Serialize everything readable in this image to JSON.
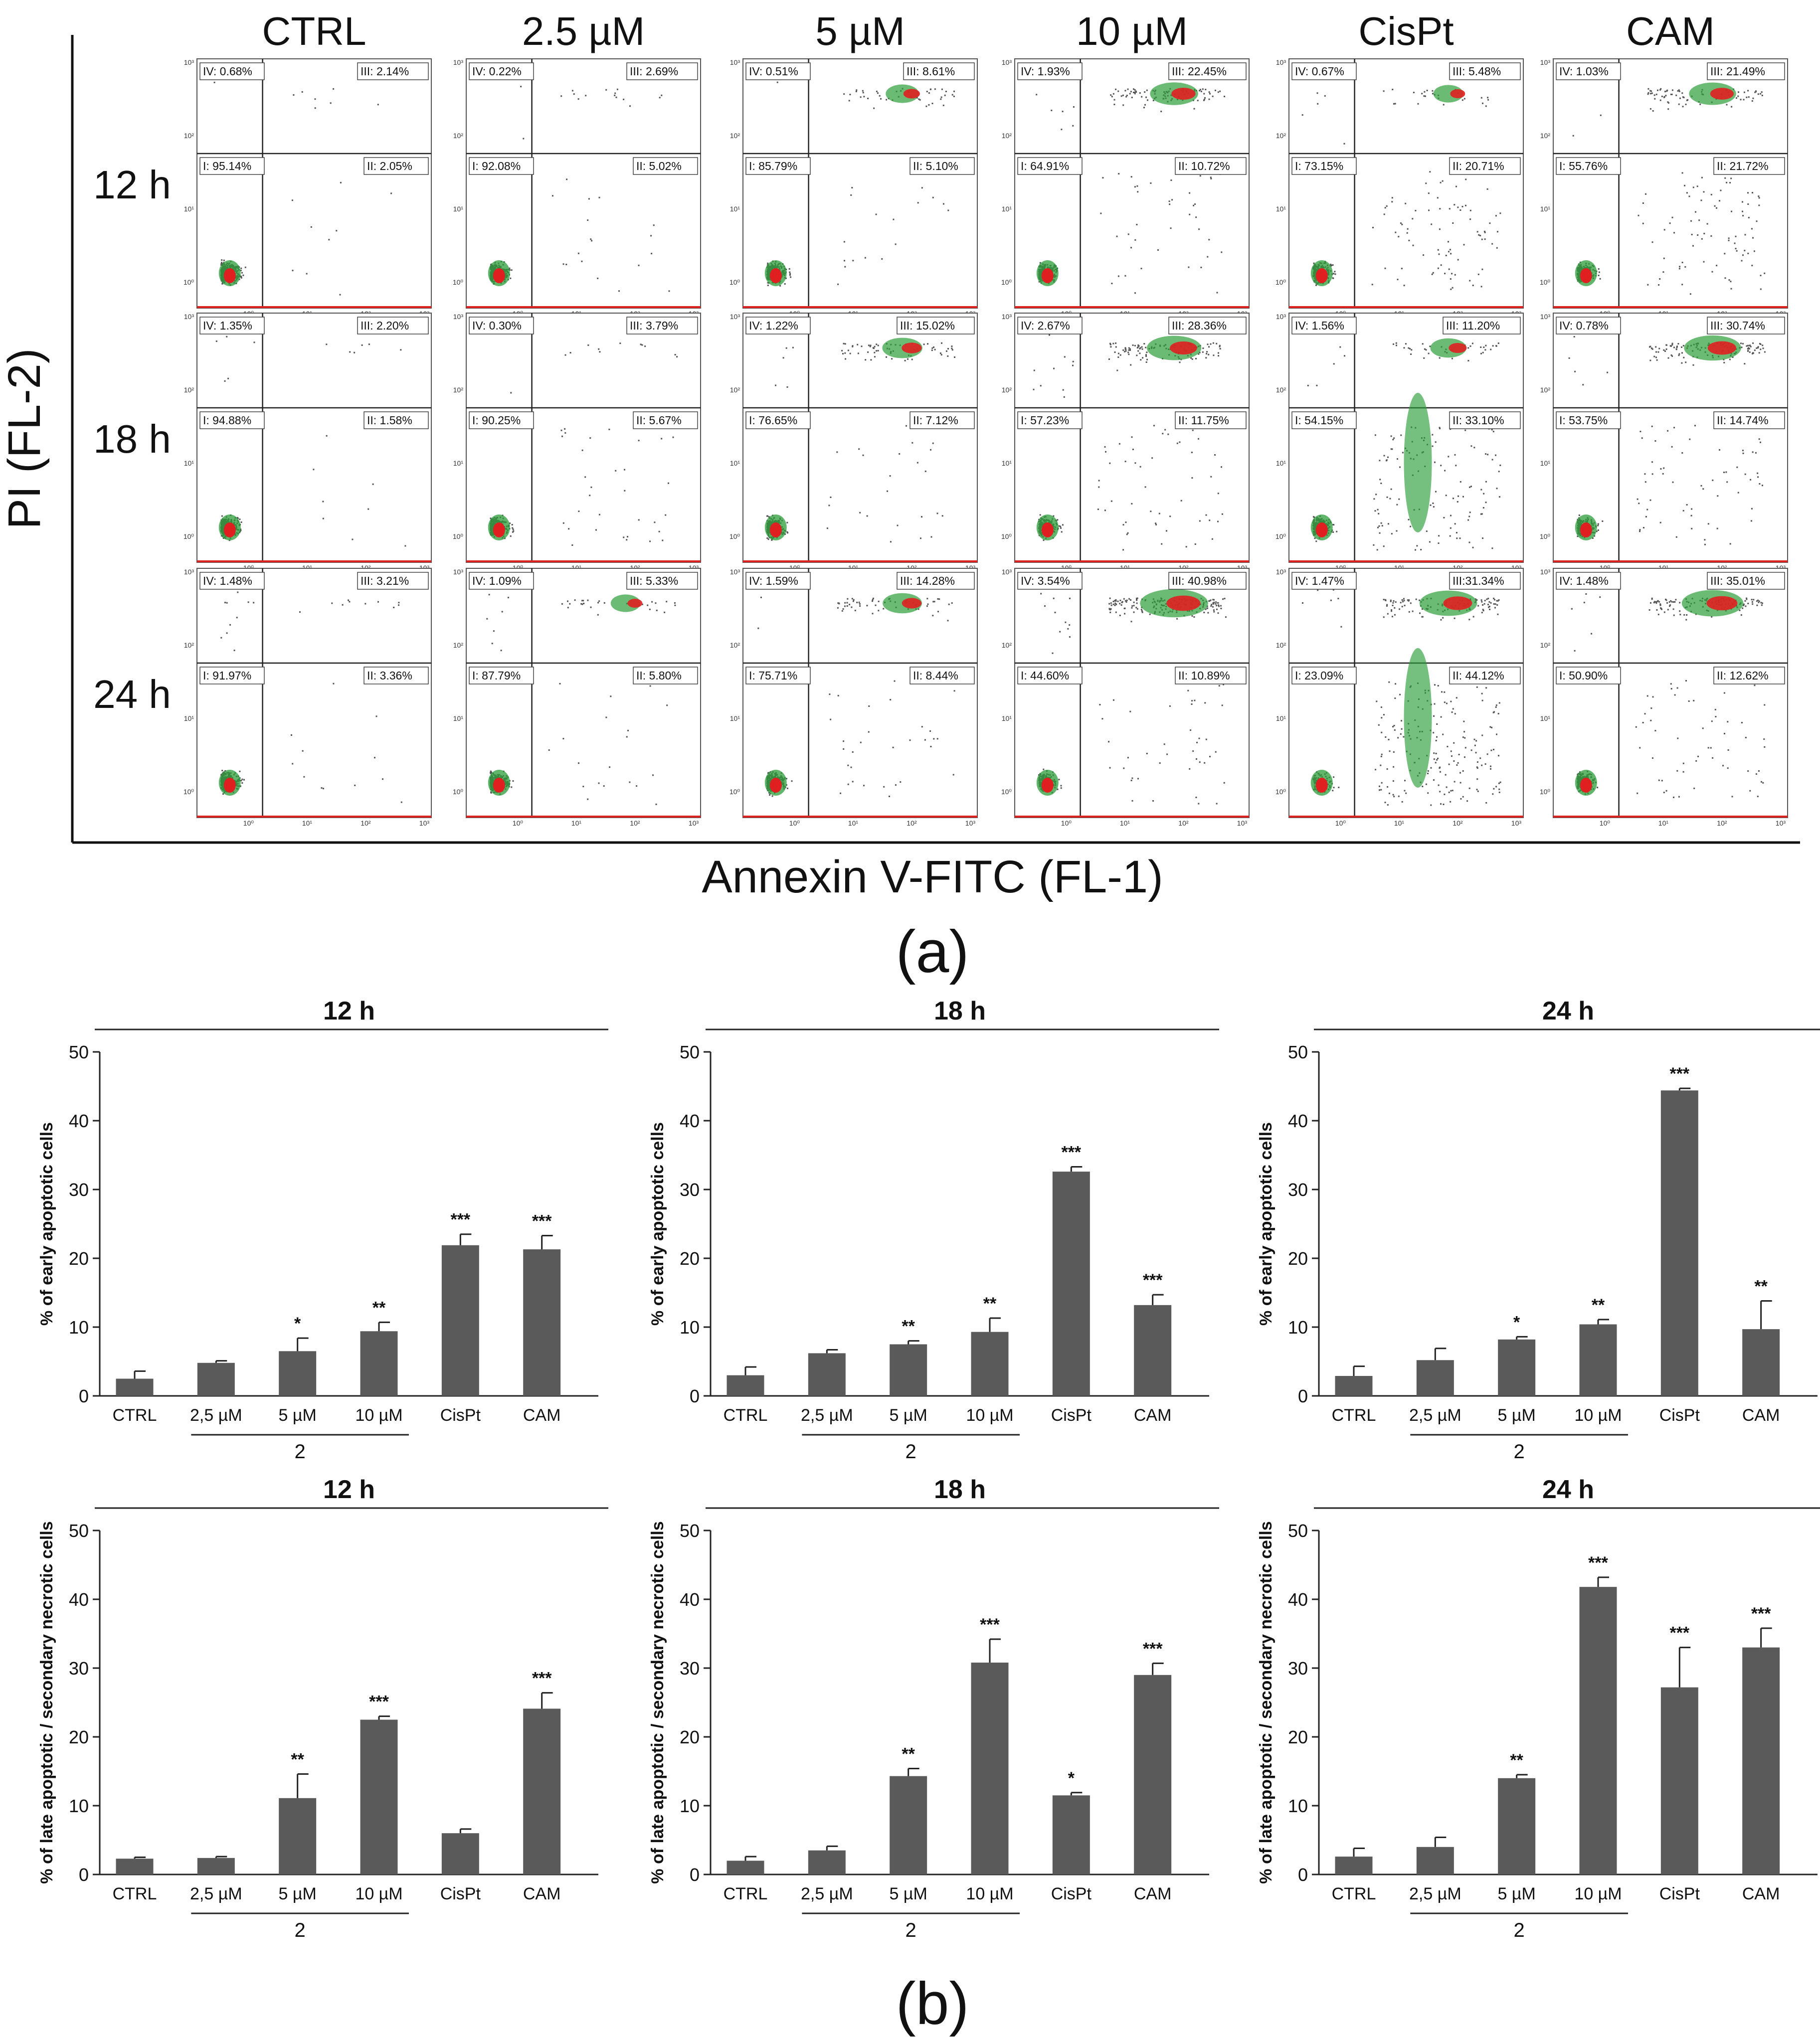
{
  "panel_a": {
    "label": "(a)",
    "y_axis_label": "PI (FL-2)",
    "x_axis_label": "Annexin V-FITC (FL-1)",
    "columns": [
      "CTRL",
      "2.5 µM",
      "5 µM",
      "10 µM",
      "CisPt",
      "CAM"
    ],
    "rows": [
      "12 h",
      "18 h",
      "24 h"
    ],
    "tick_labels_x": [
      "10⁰",
      "10¹",
      "10²",
      "10³"
    ],
    "tick_labels_y": [
      "10³",
      "10²",
      "10¹",
      "10⁰"
    ],
    "quadrants": [
      [
        {
          "I": "I: 95.14%",
          "II": "II: 2.05%",
          "III": "III: 2.14%",
          "IV": "IV: 0.68%"
        },
        {
          "I": "I: 92.08%",
          "II": "II: 5.02%",
          "III": "III: 2.69%",
          "IV": "IV: 0.22%"
        },
        {
          "I": "I: 85.79%",
          "II": "II: 5.10%",
          "III": "III: 8.61%",
          "IV": "IV: 0.51%"
        },
        {
          "I": "I: 64.91%",
          "II": "II: 10.72%",
          "III": "III: 22.45%",
          "IV": "IV: 1.93%"
        },
        {
          "I": "I: 73.15%",
          "II": "II: 20.71%",
          "III": "III: 5.48%",
          "IV": "IV: 0.67%"
        },
        {
          "I": "I: 55.76%",
          "II": "II: 21.72%",
          "III": "III: 21.49%",
          "IV": "IV: 1.03%"
        }
      ],
      [
        {
          "I": "I: 94.88%",
          "II": "II: 1.58%",
          "III": "III: 2.20%",
          "IV": "IV: 1.35%"
        },
        {
          "I": "I: 90.25%",
          "II": "II: 5.67%",
          "III": "III: 3.79%",
          "IV": "IV: 0.30%"
        },
        {
          "I": "I: 76.65%",
          "II": "II: 7.12%",
          "III": "III: 15.02%",
          "IV": "IV: 1.22%"
        },
        {
          "I": "I: 57.23%",
          "II": "II: 11.75%",
          "III": "III: 28.36%",
          "IV": "IV: 2.67%"
        },
        {
          "I": "I: 54.15%",
          "II": "II: 33.10%",
          "III": "III: 11.20%",
          "IV": "IV: 1.56%"
        },
        {
          "I": "I: 53.75%",
          "II": "II: 14.74%",
          "III": "III: 30.74%",
          "IV": "IV: 0.78%"
        }
      ],
      [
        {
          "I": "I: 91.97%",
          "II": "II: 3.36%",
          "III": "III: 3.21%",
          "IV": "IV: 1.48%"
        },
        {
          "I": "I: 87.79%",
          "II": "II: 5.80%",
          "III": "III: 5.33%",
          "IV": "IV: 1.09%"
        },
        {
          "I": "I: 75.71%",
          "II": "II: 8.44%",
          "III": "III: 14.28%",
          "IV": "IV: 1.59%"
        },
        {
          "I": "I: 44.60%",
          "II": "II: 10.89%",
          "III": "III: 40.98%",
          "IV": "IV: 3.54%"
        },
        {
          "I": "I: 23.09%",
          "II": "II: 44.12%",
          "III": "III:31.34%",
          "IV": "IV: 1.47%"
        },
        {
          "I": "I: 50.90%",
          "II": "II: 12.62%",
          "III": "III: 35.01%",
          "IV": "IV: 1.48%"
        }
      ]
    ]
  },
  "panel_b": {
    "label": "(b)",
    "group_label": "2",
    "colors": {
      "bar": "#5a5a5a",
      "axis": "#222222"
    }
  },
  "chart_data": [
    {
      "type": "bar",
      "title": "12 h",
      "ylabel": "% of early apoptotic cells",
      "ylim": [
        0,
        50
      ],
      "yticks": [
        0,
        10,
        20,
        30,
        40,
        50
      ],
      "categories": [
        "CTRL",
        "2,5 µM",
        "5 µM",
        "10 µM",
        "CisPt",
        "CAM"
      ],
      "values": [
        2.5,
        4.8,
        6.5,
        9.4,
        21.9,
        21.3
      ],
      "errors": [
        1.1,
        0.3,
        1.9,
        1.3,
        1.6,
        2.0
      ],
      "significance": [
        "",
        "",
        "*",
        "**",
        "***",
        "***"
      ]
    },
    {
      "type": "bar",
      "title": "18 h",
      "ylabel": "% of early apoptotic cells",
      "ylim": [
        0,
        50
      ],
      "yticks": [
        0,
        10,
        20,
        30,
        40,
        50
      ],
      "categories": [
        "CTRL",
        "2,5 µM",
        "5 µM",
        "10 µM",
        "CisPt",
        "CAM"
      ],
      "values": [
        3.0,
        6.2,
        7.5,
        9.3,
        32.6,
        13.2
      ],
      "errors": [
        1.2,
        0.5,
        0.5,
        2.0,
        0.7,
        1.5
      ],
      "significance": [
        "",
        "",
        "**",
        "**",
        "***",
        "***"
      ]
    },
    {
      "type": "bar",
      "title": "24 h",
      "ylabel": "% of early apoptotic cells",
      "ylim": [
        0,
        50
      ],
      "yticks": [
        0,
        10,
        20,
        30,
        40,
        50
      ],
      "categories": [
        "CTRL",
        "2,5 µM",
        "5 µM",
        "10 µM",
        "CisPt",
        "CAM"
      ],
      "values": [
        2.9,
        5.2,
        8.2,
        10.4,
        44.4,
        9.7
      ],
      "errors": [
        1.4,
        1.7,
        0.4,
        0.7,
        0.3,
        4.1
      ],
      "significance": [
        "",
        "",
        "*",
        "**",
        "***",
        "**"
      ]
    },
    {
      "type": "bar",
      "title": "12 h",
      "ylabel": "% of late apoptotic / secondary necrotic cells",
      "ylim": [
        0,
        50
      ],
      "yticks": [
        0,
        10,
        20,
        30,
        40,
        50
      ],
      "categories": [
        "CTRL",
        "2,5 µM",
        "5 µM",
        "10 µM",
        "CisPt",
        "CAM"
      ],
      "values": [
        2.3,
        2.4,
        11.1,
        22.5,
        6.0,
        24.1
      ],
      "errors": [
        0.2,
        0.2,
        3.5,
        0.5,
        0.6,
        2.3
      ],
      "significance": [
        "",
        "",
        "**",
        "***",
        "",
        "***"
      ]
    },
    {
      "type": "bar",
      "title": "18 h",
      "ylabel": "% of late apoptotic / secondary necrotic cells",
      "ylim": [
        0,
        50
      ],
      "yticks": [
        0,
        10,
        20,
        30,
        40,
        50
      ],
      "categories": [
        "CTRL",
        "2,5 µM",
        "5 µM",
        "10 µM",
        "CisPt",
        "CAM"
      ],
      "values": [
        2.0,
        3.5,
        14.3,
        30.8,
        11.5,
        29.0
      ],
      "errors": [
        0.6,
        0.6,
        1.1,
        3.4,
        0.4,
        1.7
      ],
      "significance": [
        "",
        "",
        "**",
        "***",
        "*",
        "***"
      ]
    },
    {
      "type": "bar",
      "title": "24 h",
      "ylabel": "% of late apoptotic / secondary necrotic cells",
      "ylim": [
        0,
        50
      ],
      "yticks": [
        0,
        10,
        20,
        30,
        40,
        50
      ],
      "categories": [
        "CTRL",
        "2,5 µM",
        "5 µM",
        "10 µM",
        "CisPt",
        "CAM"
      ],
      "values": [
        2.6,
        4.0,
        14.0,
        41.8,
        27.2,
        33.0
      ],
      "errors": [
        1.2,
        1.4,
        0.5,
        1.4,
        5.8,
        2.8
      ],
      "significance": [
        "",
        "",
        "**",
        "***",
        "***",
        "***"
      ]
    }
  ]
}
